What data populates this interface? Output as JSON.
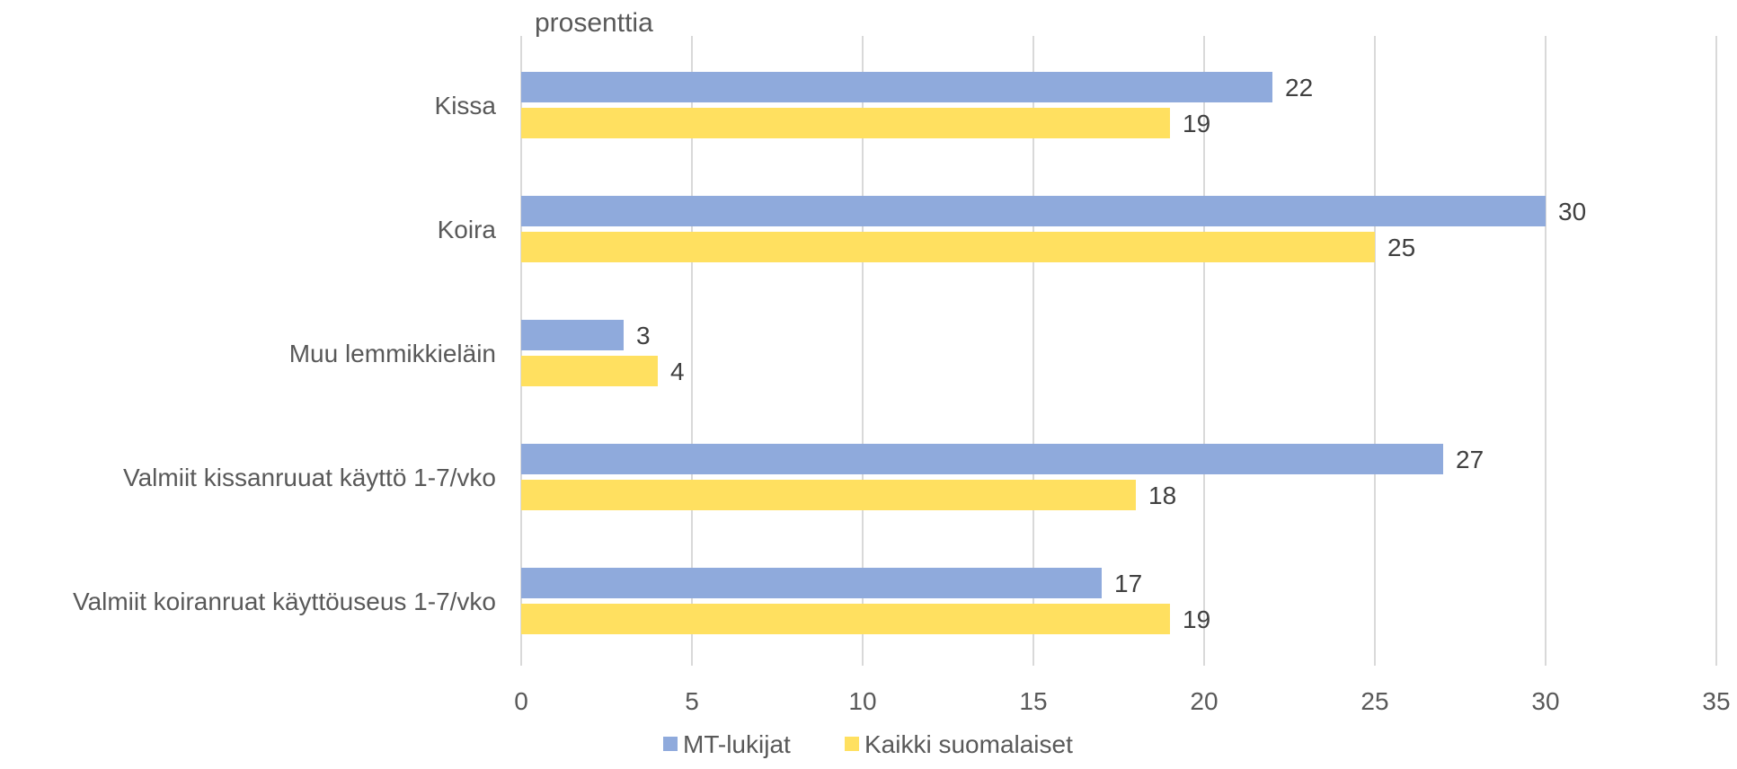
{
  "chart_data": {
    "type": "bar",
    "orientation": "horizontal",
    "unit_label": "prosenttia",
    "categories": [
      "Kissa",
      "Koira",
      "Muu lemmikkieläin",
      "Valmiit kissanruuat käyttö 1-7/vko",
      "Valmiit koiranruat käyttöuseus 1-7/vko"
    ],
    "series": [
      {
        "name": "MT-lukijat",
        "color": "#8faadc",
        "values": [
          22,
          30,
          3,
          27,
          17
        ]
      },
      {
        "name": "Kaikki suomalaiset",
        "color": "#ffe060",
        "values": [
          19,
          25,
          4,
          18,
          19
        ]
      }
    ],
    "xlim": [
      0,
      35
    ],
    "xticks": [
      0,
      5,
      10,
      15,
      20,
      25,
      30,
      35
    ],
    "grid": "vertical",
    "legend_position": "bottom"
  }
}
